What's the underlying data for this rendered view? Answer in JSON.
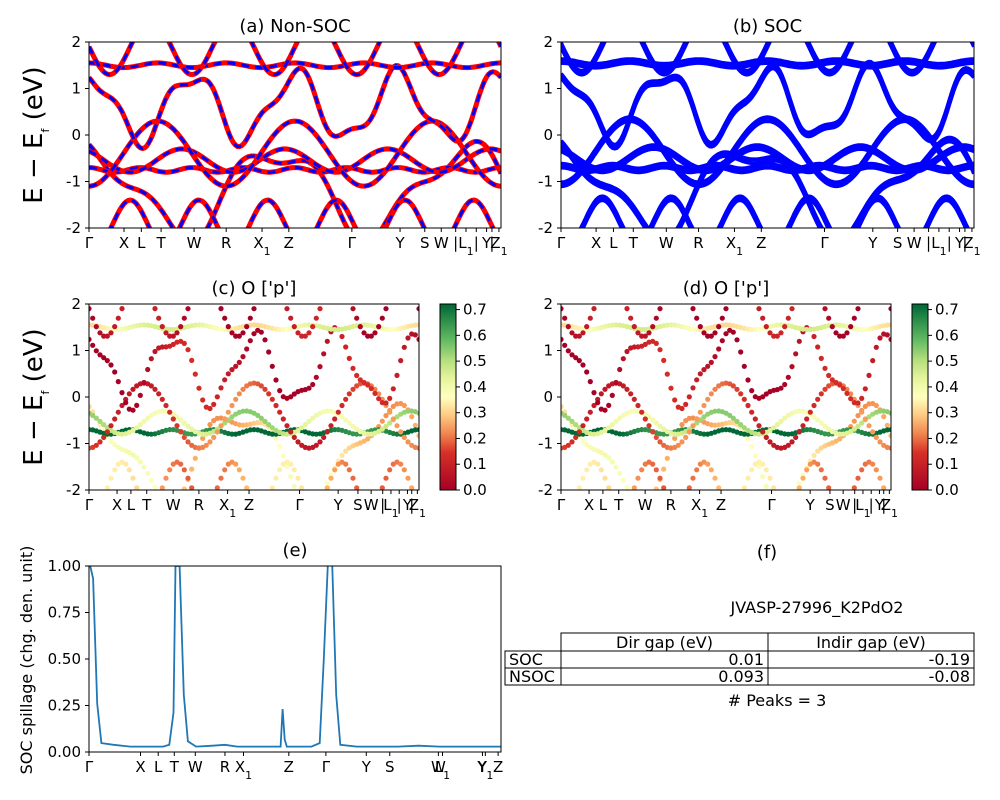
{
  "chart_data": [
    {
      "id": "a",
      "type": "line",
      "title": "(a) Non-SOC",
      "ylabel": "$E - E_f$ (eV)",
      "ylabel_text": "E − E",
      "ylabel_sub": "f",
      "ylabel_unit": " (eV)",
      "ylim": [
        -2,
        2
      ],
      "yticks": [
        "-2",
        "-1",
        "0",
        "1",
        "2"
      ],
      "xticks": [
        {
          "label": "Γ",
          "pos": 0.0
        },
        {
          "label": "X",
          "pos": 0.085
        },
        {
          "label": "L",
          "pos": 0.127
        },
        {
          "label": "T",
          "pos": 0.175
        },
        {
          "label": "W",
          "pos": 0.255
        },
        {
          "label": "R",
          "pos": 0.333
        },
        {
          "label": "X",
          "sub": "1",
          "pos": 0.42
        },
        {
          "label": "Z",
          "pos": 0.485
        },
        {
          "label": "Γ",
          "pos": 0.638
        },
        {
          "label": "Y",
          "pos": 0.755
        },
        {
          "label": "S",
          "pos": 0.815
        },
        {
          "label": "W",
          "pos": 0.855
        },
        {
          "label": "|",
          "pos": 0.89
        },
        {
          "label": "L",
          "sub": "1",
          "pos": 0.915
        },
        {
          "label": "|",
          "pos": 0.94
        },
        {
          "label": "Y",
          "pos": 0.965
        },
        {
          "label": "|",
          "pos": 0.978
        },
        {
          "label": "Z",
          "sub": "1",
          "pos": 0.995
        }
      ],
      "series": [
        {
          "color": "#ff0000"
        },
        {
          "color": "#0000ff"
        }
      ]
    },
    {
      "id": "b",
      "type": "line",
      "title": "(b) SOC",
      "ylim": [
        -2,
        2
      ],
      "yticks": [
        "-2",
        "-1",
        "0",
        "1",
        "2"
      ],
      "series": [
        {
          "color": "#0000ff"
        }
      ]
    },
    {
      "id": "c",
      "type": "scatter",
      "title": "(c)  O ['p']",
      "ylabel_text": "E − E",
      "ylabel_sub": "f",
      "ylabel_unit": " (eV)",
      "ylim": [
        -2,
        2
      ],
      "yticks": [
        "-2",
        "-1",
        "0",
        "1",
        "2"
      ],
      "colorbar": {
        "min": 0.0,
        "max": 0.7,
        "ticks": [
          "0.0",
          "0.1",
          "0.2",
          "0.3",
          "0.4",
          "0.5",
          "0.6",
          "0.7"
        ],
        "cmap": "RdYlGn"
      }
    },
    {
      "id": "d",
      "type": "scatter",
      "title": "(d) O ['p']",
      "ylim": [
        -2,
        2
      ],
      "yticks": [
        "-2",
        "-1",
        "0",
        "1",
        "2"
      ],
      "colorbar": {
        "min": 0.0,
        "max": 0.7,
        "ticks": [
          "0.0",
          "0.1",
          "0.2",
          "0.3",
          "0.4",
          "0.5",
          "0.6",
          "0.7"
        ],
        "cmap": "RdYlGn"
      }
    },
    {
      "id": "e",
      "type": "line",
      "title": "(e)",
      "ylabel": "SOC spillage (chg. den. unit)",
      "ylim": [
        0,
        1.0
      ],
      "yticks": [
        "0.00",
        "0.25",
        "0.50",
        "0.75",
        "1.00"
      ],
      "xticks": [
        {
          "label": "Γ",
          "pos": 0.0
        },
        {
          "label": "X",
          "pos": 0.125
        },
        {
          "label": "L",
          "pos": 0.168
        },
        {
          "label": "T",
          "pos": 0.207
        },
        {
          "label": "W",
          "pos": 0.258
        },
        {
          "label": "R",
          "pos": 0.33
        },
        {
          "label": "X",
          "sub": "1",
          "pos": 0.375
        },
        {
          "label": "Z",
          "pos": 0.485
        },
        {
          "label": "Γ",
          "pos": 0.575
        },
        {
          "label": "Y",
          "pos": 0.673
        },
        {
          "label": "S",
          "pos": 0.73
        },
        {
          "label": "W",
          "pos": 0.848
        },
        {
          "label": "L",
          "sub": "1",
          "pos": 0.858
        },
        {
          "label": "Y",
          "pos": 0.955
        },
        {
          "label": "Y",
          "sub": "1",
          "pos": 0.962
        },
        {
          "label": "Z",
          "pos": 0.993
        }
      ],
      "series": [
        {
          "color": "#1f77b4",
          "x": [
            0.0,
            0.01,
            0.02,
            0.03,
            0.06,
            0.1,
            0.14,
            0.18,
            0.195,
            0.205,
            0.21,
            0.22,
            0.23,
            0.24,
            0.26,
            0.3,
            0.33,
            0.36,
            0.4,
            0.45,
            0.465,
            0.47,
            0.475,
            0.48,
            0.5,
            0.54,
            0.56,
            0.57,
            0.58,
            0.59,
            0.6,
            0.61,
            0.65,
            0.7,
            0.75,
            0.8,
            0.85,
            0.9,
            0.95,
            0.99,
            1.0
          ],
          "y": [
            1.05,
            0.95,
            0.25,
            0.03,
            0.02,
            0.01,
            0.01,
            0.01,
            0.02,
            0.2,
            1.02,
            1.02,
            0.3,
            0.04,
            0.01,
            0.015,
            0.02,
            0.01,
            0.01,
            0.01,
            0.01,
            0.22,
            0.05,
            0.01,
            0.01,
            0.01,
            0.03,
            0.5,
            1.05,
            1.05,
            0.3,
            0.02,
            0.01,
            0.01,
            0.01,
            0.015,
            0.01,
            0.01,
            0.01,
            0.01,
            0.01
          ]
        }
      ]
    }
  ],
  "panel_f": {
    "title": "(f)",
    "name": "JVASP-27996_K2PdO2",
    "headers": [
      "Dir gap (eV)",
      "Indir gap (eV)"
    ],
    "rows": [
      {
        "label": "SOC",
        "dir": "0.01",
        "indir": "-0.19"
      },
      {
        "label": "NSOC",
        "dir": "0.093",
        "indir": "-0.08"
      }
    ],
    "peaks": "# Peaks = 3"
  }
}
